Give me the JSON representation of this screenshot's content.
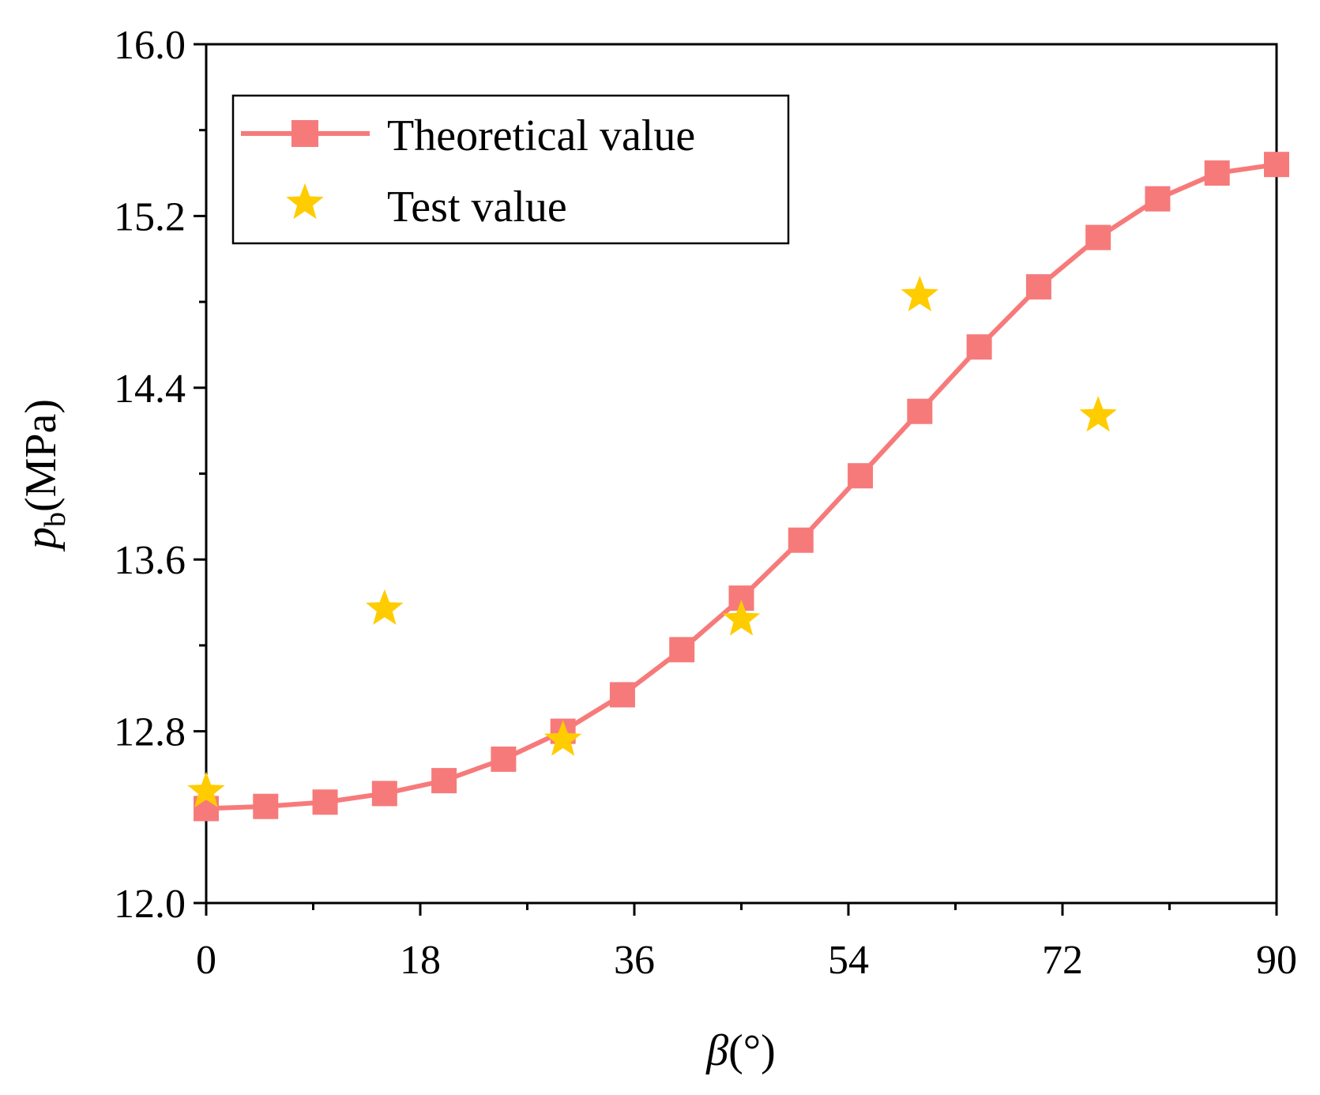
{
  "chart_data": {
    "type": "line",
    "title": "",
    "xlabel": "β(°)",
    "xlabel_symbol": "β",
    "xlabel_unit": "(°)",
    "ylabel": "p_b(MPa)",
    "ylabel_symbol": "p",
    "ylabel_subscript": "b",
    "ylabel_unit": "(MPa)",
    "xlim": [
      0,
      90
    ],
    "ylim": [
      12.0,
      16.0
    ],
    "xticks": [
      0,
      18,
      36,
      54,
      72,
      90
    ],
    "xtick_labels": [
      "0",
      "18",
      "36",
      "54",
      "72",
      "90"
    ],
    "yticks": [
      12.0,
      12.8,
      13.6,
      14.4,
      15.2,
      16.0
    ],
    "ytick_labels": [
      "12.0",
      "12.8",
      "13.6",
      "14.4",
      "15.2",
      "16.0"
    ],
    "grid": false,
    "legend_position": "top-left",
    "series": [
      {
        "name": "Theoretical value",
        "style": "line-square",
        "color": "#F77A7A",
        "x": [
          0,
          5,
          10,
          15,
          20,
          25,
          30,
          35,
          40,
          45,
          50,
          55,
          60,
          65,
          70,
          75,
          80,
          85,
          90
        ],
        "values": [
          12.44,
          12.45,
          12.47,
          12.51,
          12.57,
          12.67,
          12.8,
          12.97,
          13.18,
          13.42,
          13.69,
          13.99,
          14.29,
          14.59,
          14.87,
          15.1,
          15.28,
          15.4,
          15.44
        ]
      },
      {
        "name": "Test value",
        "style": "star",
        "color": "#FFCC00",
        "x": [
          0,
          15,
          30,
          45,
          60,
          75
        ],
        "values": [
          12.52,
          13.37,
          12.76,
          13.32,
          14.83,
          14.27
        ]
      }
    ]
  }
}
